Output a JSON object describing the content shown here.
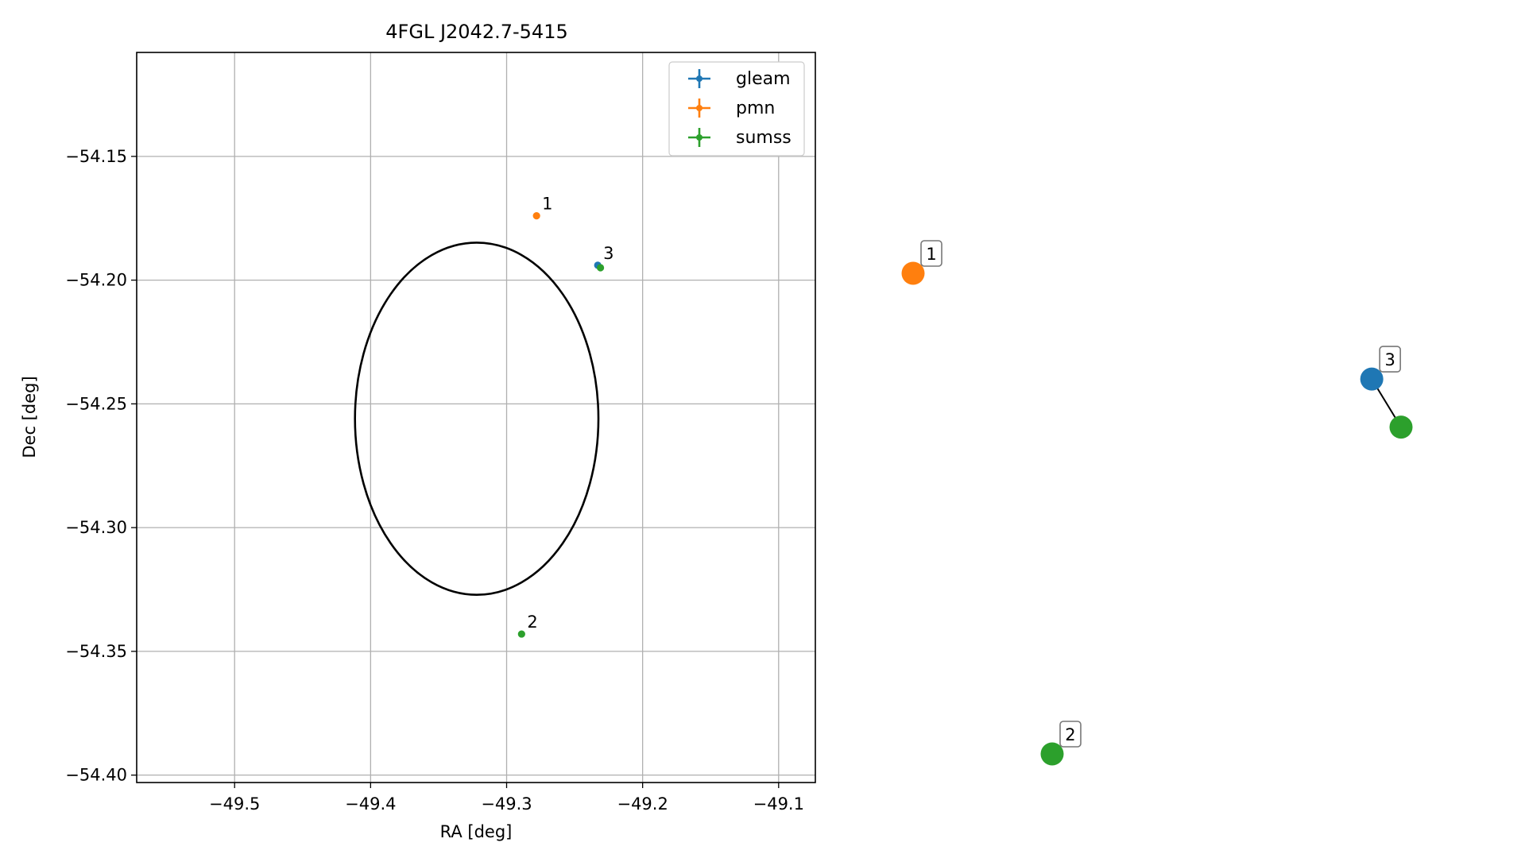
{
  "chart_data": [
    {
      "type": "scatter",
      "title": "4FGL J2042.7-5415",
      "xlabel": "RA [deg]",
      "ylabel": "Dec [deg]",
      "xlim": [
        -49.572,
        -49.073
      ],
      "ylim": [
        -54.403,
        -54.108
      ],
      "xticks": [
        -49.5,
        -49.4,
        -49.3,
        -49.2,
        -49.1
      ],
      "yticks": [
        -54.15,
        -54.2,
        -54.25,
        -54.3,
        -54.35,
        -54.4
      ],
      "xtick_labels": [
        "−49.5",
        "−49.4",
        "−49.3",
        "−49.2",
        "−49.1"
      ],
      "ytick_labels": [
        "−54.15",
        "−54.20",
        "−54.25",
        "−54.30",
        "−54.35",
        "−54.40"
      ],
      "grid": true,
      "legend_position": "top-right",
      "circle": {
        "center_ra": -49.322,
        "center_dec": -54.256,
        "radius_deg": 0.0895,
        "color": "#000000"
      },
      "series": [
        {
          "name": "gleam",
          "color": "#1f77b4",
          "points": [
            {
              "ra": -49.233,
              "dec": -54.194,
              "label": "3"
            }
          ]
        },
        {
          "name": "pmn",
          "color": "#ff7f0e",
          "points": [
            {
              "ra": -49.278,
              "dec": -54.174,
              "label": "1"
            }
          ]
        },
        {
          "name": "sumss",
          "color": "#2ca02c",
          "points": [
            {
              "ra": -49.231,
              "dec": -54.195,
              "label": ""
            },
            {
              "ra": -49.289,
              "dec": -54.343,
              "label": "2"
            }
          ]
        }
      ]
    },
    {
      "type": "scatter",
      "title": "",
      "axes": false,
      "nodes": [
        {
          "label": "1",
          "color": "#ff7f0e",
          "x": 0.0,
          "y": 0.0
        },
        {
          "label": "2",
          "color": "#2ca02c",
          "x": 0.285,
          "y": 1.0
        },
        {
          "label": "3",
          "color": "#1f77b4",
          "x": 0.94,
          "y": 0.22
        },
        {
          "label": "",
          "color": "#2ca02c",
          "x": 1.0,
          "y": 0.32
        }
      ],
      "edges": [
        [
          2,
          3
        ]
      ]
    }
  ]
}
